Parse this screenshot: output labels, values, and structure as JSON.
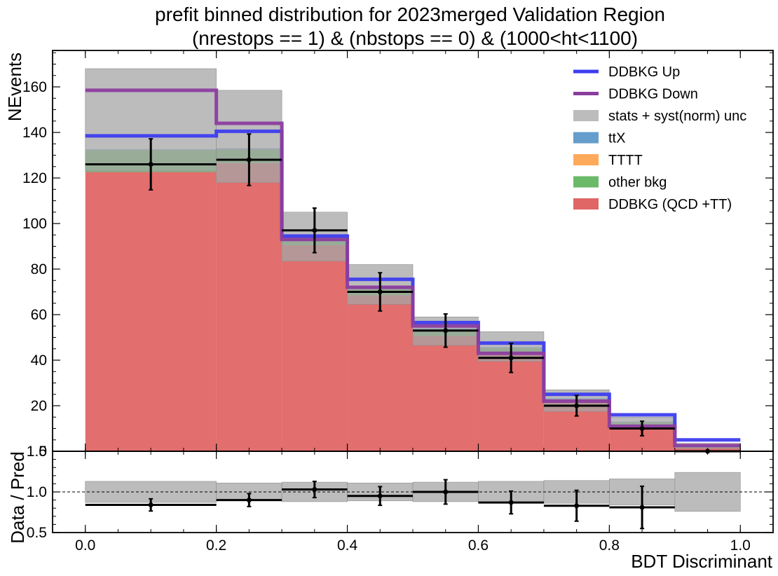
{
  "chart_data": {
    "type": "bar",
    "title_line1": "prefit binned distribution for 2023merged Validation Region",
    "title_line2": "(nrestops == 1) & (nbstops == 0) & (1000<ht<1100)",
    "xlabel": "BDT Discriminant",
    "ylabel": "NEvents",
    "ratio_ylabel": "Data / Pred",
    "bin_edges": [
      0.0,
      0.2,
      0.3,
      0.4,
      0.5,
      0.6,
      0.7,
      0.8,
      0.9,
      1.0
    ],
    "xlim": [
      -0.05,
      1.05
    ],
    "ylim": [
      0,
      176
    ],
    "ratio_ylim": [
      0.5,
      1.5
    ],
    "x_ticks": [
      0.0,
      0.2,
      0.4,
      0.6,
      0.8,
      1.0
    ],
    "x_tick_labels": [
      "0.0",
      "0.2",
      "0.4",
      "0.6",
      "0.8",
      "1.0"
    ],
    "y_ticks": [
      20,
      40,
      60,
      80,
      100,
      120,
      140,
      160
    ],
    "y_tick_labels": [
      "20",
      "40",
      "60",
      "80",
      "100",
      "120",
      "140",
      "160"
    ],
    "ratio_y_ticks": [
      0.5,
      1.0,
      1.5
    ],
    "ratio_y_tick_labels": [
      "0.5",
      "1.0",
      "1.5"
    ],
    "colors": {
      "ddbkg": "#e06666",
      "other_bkg": "#6aba6a",
      "tttt": "#ffa95a",
      "ttx": "#659dcc",
      "unc": "#a6a6a6",
      "up": "#3d3df0",
      "down": "#8c3d9e",
      "data": "#000000"
    },
    "stacks": [
      {
        "name": "DDBKG (QCD +TT)",
        "color_key": "ddbkg",
        "values": [
          122.6,
          126.5,
          90.5,
          68.5,
          50.6,
          43.2,
          21.3,
          11.7,
          1.6
        ]
      },
      {
        "name": "other bkg",
        "color_key": "other_bkg",
        "values": [
          9.5,
          5.8,
          3.4,
          3.3,
          2.8,
          2.0,
          1.4,
          0.8,
          0.3
        ]
      },
      {
        "name": "TTTT",
        "color_key": "tttt",
        "values": [
          0.1,
          0.1,
          0.1,
          0.1,
          0.1,
          0.1,
          0.1,
          0.1,
          0.1
        ]
      },
      {
        "name": "ttX",
        "color_key": "ttx",
        "values": [
          0.4,
          0.6,
          0.5,
          0.4,
          0.5,
          0.4,
          0.5,
          0.4,
          0.3
        ]
      }
    ],
    "unc_band": {
      "name": "stats + syst(norm) unc",
      "low": [
        123.0,
        118.0,
        83.5,
        64.5,
        46.5,
        39.5,
        17.5,
        10.5,
        1.2
      ],
      "high": [
        168.0,
        158.5,
        105.0,
        82.0,
        59.0,
        52.5,
        27.0,
        15.0,
        3.5
      ]
    },
    "ddbkg_up": {
      "name": "DDBKG Up",
      "values": [
        138.5,
        140.5,
        94.5,
        75.5,
        56.5,
        47.5,
        25.0,
        16.0,
        5.0
      ]
    },
    "ddbkg_down": {
      "name": "DDBKG Down",
      "values": [
        158.5,
        144.0,
        93.0,
        72.0,
        55.0,
        43.0,
        22.0,
        11.0,
        2.5
      ]
    },
    "data": {
      "x": [
        0.1,
        0.25,
        0.35,
        0.45,
        0.55,
        0.65,
        0.75,
        0.85,
        0.95
      ],
      "y": [
        126,
        128,
        97,
        70,
        53,
        41,
        20,
        10,
        0
      ],
      "yerr": [
        11.2,
        11.3,
        9.8,
        8.4,
        7.3,
        6.4,
        4.5,
        3.2,
        0
      ]
    },
    "ratio": {
      "x": [
        0.1,
        0.25,
        0.35,
        0.45,
        0.55,
        0.65,
        0.75,
        0.85
      ],
      "y": [
        0.84,
        0.9,
        1.03,
        0.95,
        1.0,
        0.87,
        0.83,
        0.81
      ],
      "yerr": [
        0.075,
        0.08,
        0.1,
        0.115,
        0.15,
        0.14,
        0.19,
        0.26
      ],
      "band_low": [
        0.87,
        0.89,
        0.88,
        0.89,
        0.88,
        0.87,
        0.86,
        0.84,
        0.76
      ],
      "band_high": [
        1.13,
        1.11,
        1.12,
        1.11,
        1.12,
        1.13,
        1.14,
        1.16,
        1.24
      ],
      "reference": 1.0
    },
    "legend": {
      "placement": "top-right",
      "entries": [
        {
          "label": "DDBKG Up",
          "kind": "line",
          "color_key": "up"
        },
        {
          "label": "DDBKG Down",
          "kind": "line",
          "color_key": "down"
        },
        {
          "label": "stats + syst(norm) unc",
          "kind": "patch",
          "color_key": "unc"
        },
        {
          "label": "ttX",
          "kind": "patch",
          "color_key": "ttx"
        },
        {
          "label": "TTTT",
          "kind": "patch",
          "color_key": "tttt"
        },
        {
          "label": "other bkg",
          "kind": "patch",
          "color_key": "other_bkg"
        },
        {
          "label": "DDBKG (QCD +TT)",
          "kind": "patch",
          "color_key": "ddbkg"
        }
      ]
    },
    "grid": false
  }
}
